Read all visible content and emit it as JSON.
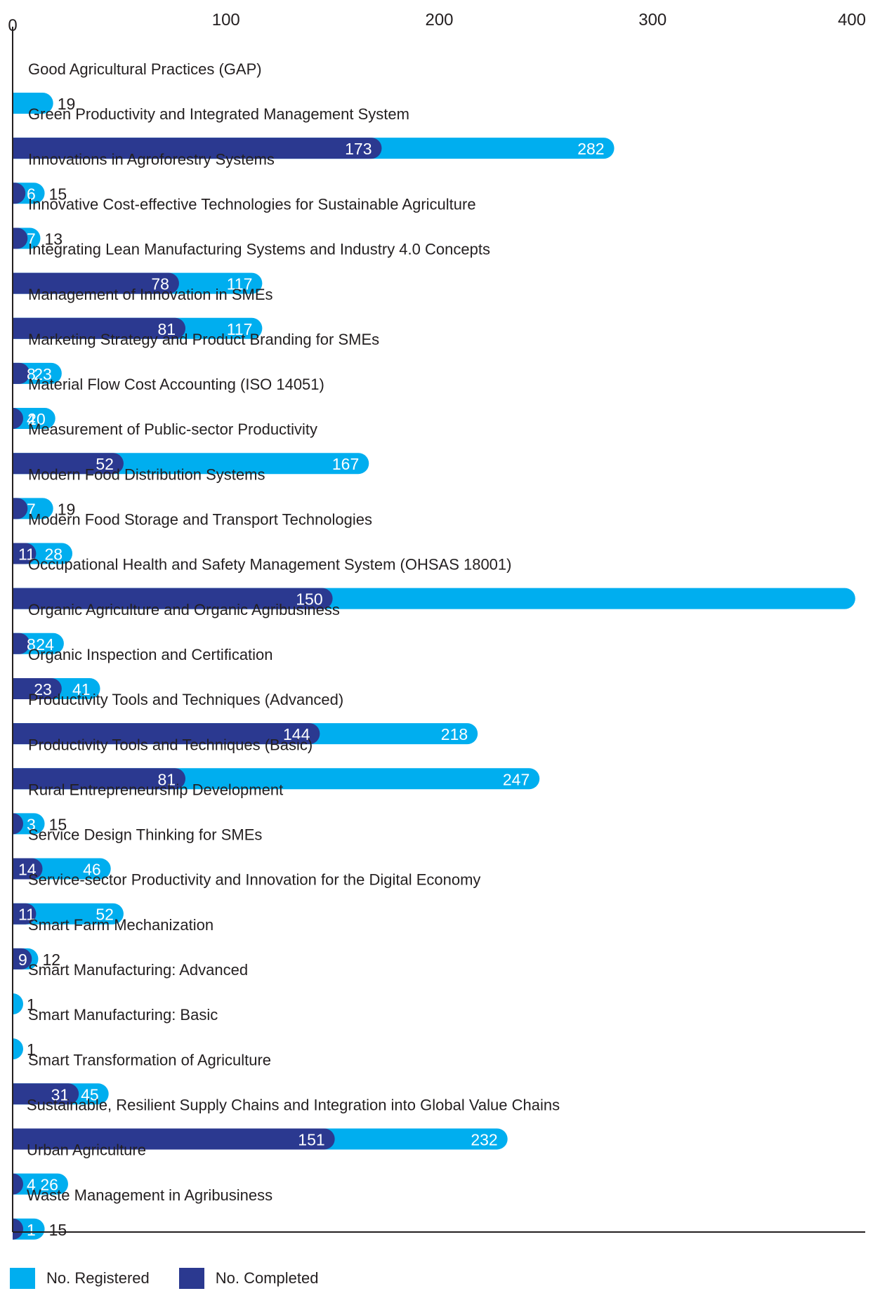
{
  "chart_data": {
    "type": "bar",
    "orientation": "horizontal",
    "layout": "overlapping",
    "xlim": [
      0,
      400
    ],
    "x_ticks": [
      "0",
      "100",
      "200",
      "300",
      "400"
    ],
    "grid": false,
    "legend_position": "bottom-left",
    "categories": [
      "Good Agricultural Practices (GAP)",
      "Green Productivity and Integrated Management System",
      "Innovations in Agroforestry Systems",
      "Innovative Cost-effective Technologies for Sustainable Agriculture",
      "Integrating Lean Manufacturing Systems and Industry 4.0 Concepts",
      "Management of Innovation in SMEs",
      "Marketing Strategy and Product Branding for SMEs",
      "Material Flow Cost Accounting (ISO 14051)",
      "Measurement of Public-sector Productivity",
      "Modern Food Distribution Systems",
      "Modern Food Storage and Transport Technologies",
      "Occupational Health and Safety Management System (OHSAS 18001)",
      "Organic Agriculture and Organic Agribusiness",
      "Organic Inspection and Certification",
      "Productivity Tools and Techniques (Advanced)",
      "Productivity Tools and Techniques (Basic)",
      "Rural Entrepreneurship Development",
      "Service Design Thinking for SMEs",
      "Service-sector Productivity and Innovation for the Digital Economy",
      "Smart Farm Mechanization",
      "Smart Manufacturing: Advanced",
      "Smart Manufacturing: Basic",
      "Smart Transformation of Agriculture",
      "Sustainable, Resilient Supply Chains and Integration into Global Value Chains",
      "Urban Agriculture",
      "Waste Management in Agribusiness"
    ],
    "series": [
      {
        "name": "No. Registered",
        "color": "#00aeef",
        "values": [
          19,
          282,
          15,
          13,
          117,
          117,
          23,
          20,
          167,
          19,
          28,
          395,
          24,
          41,
          218,
          247,
          15,
          46,
          52,
          12,
          1,
          1,
          45,
          232,
          26,
          15
        ],
        "labels": [
          "19",
          "282",
          "15",
          "13",
          "117",
          "117",
          "23",
          "20",
          "167",
          "19",
          "28",
          "",
          "24",
          "41",
          "218",
          "247",
          "15",
          "46",
          "52",
          "12",
          "1",
          "1",
          "45",
          "232",
          "26",
          "15"
        ]
      },
      {
        "name": "No. Completed",
        "color": "#2b3990",
        "values": [
          null,
          173,
          6,
          7,
          78,
          81,
          8,
          4,
          52,
          7,
          11,
          150,
          8,
          23,
          144,
          81,
          3,
          14,
          11,
          9,
          null,
          null,
          31,
          151,
          4,
          1
        ],
        "labels": [
          "",
          "173",
          "6",
          "7",
          "78",
          "81",
          "8",
          "4",
          "52",
          "7",
          "11",
          "150",
          "8",
          "23",
          "144",
          "81",
          "3",
          "14",
          "11",
          "9",
          "",
          "",
          "31",
          "151",
          "4",
          "1"
        ]
      }
    ]
  }
}
